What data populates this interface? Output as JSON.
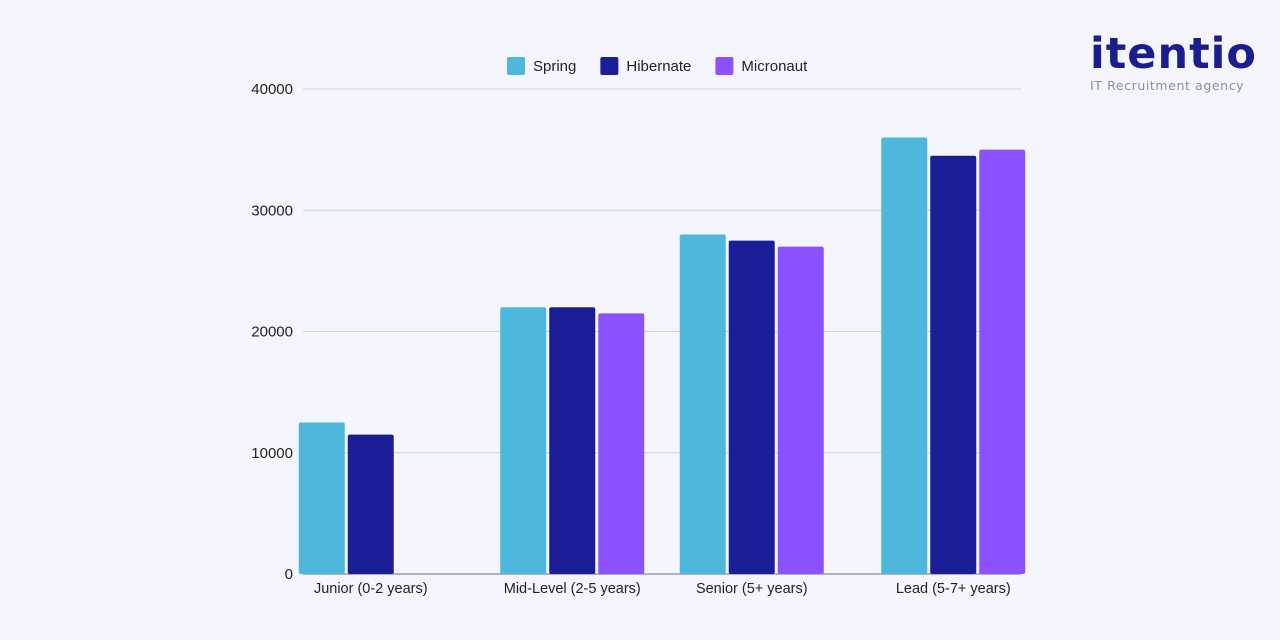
{
  "brand": {
    "name": "itentio",
    "tagline": "IT Recruitment agency"
  },
  "chart_data": {
    "type": "bar",
    "categories": [
      "Junior (0-2 years)",
      "Mid-Level (2-5 years)",
      "Senior (5+ years)",
      "Lead (5-7+ years)"
    ],
    "series": [
      {
        "name": "Spring",
        "color": "#4db8dc",
        "values": [
          12500,
          22000,
          28000,
          36000
        ]
      },
      {
        "name": "Hibernate",
        "color": "#1b1d96",
        "values": [
          11500,
          22000,
          27500,
          34500
        ]
      },
      {
        "name": "Micronaut",
        "color": "#8c52ff",
        "values": [
          0,
          21500,
          27000,
          35000
        ]
      }
    ],
    "ylim": [
      0,
      40000
    ],
    "yticks": [
      0,
      10000,
      20000,
      30000,
      40000
    ],
    "grid": true,
    "legend": "top-center"
  }
}
